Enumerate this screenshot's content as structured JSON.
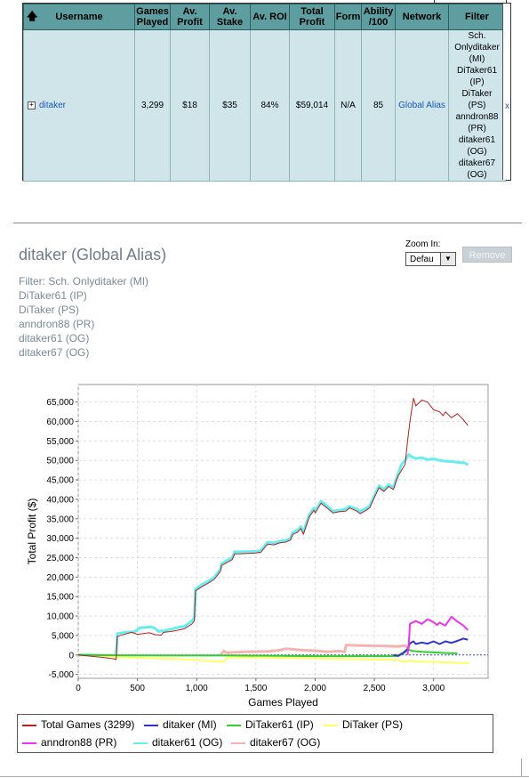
{
  "table": {
    "headers": [
      "Username",
      "Games Played",
      "Av. Profit",
      "Av. Stake",
      "Av. ROI",
      "Total Profit",
      "Form",
      "Ability /100",
      "Network",
      "Filter"
    ],
    "row": {
      "username": "ditaker",
      "games_played": "3,299",
      "av_profit": "$18",
      "av_stake": "$35",
      "av_roi": "84%",
      "total_profit": "$59,014",
      "form": "N/A",
      "ability": "85",
      "network": "Global Alias",
      "filter_lines": [
        "Sch.",
        "Onlyditaker",
        "(MI)",
        "DiTaker61",
        "(IP)",
        "DiTaker",
        "(PS)",
        "anndron88",
        "(PR)",
        "ditaker61",
        "(OG)",
        "ditaker67",
        "(OG)"
      ],
      "remove_mark": "x"
    },
    "sort_icon": "up-arrow-icon",
    "expand_icon": "plus-box-icon",
    "header_color": "#5f9ea0",
    "row_color": "#cfe5ea"
  },
  "header": {
    "title": "ditaker (Global Alias)",
    "filters": [
      "Filter: Sch. Onlyditaker (MI)",
      "DiTaker61 (IP)",
      "DiTaker (PS)",
      "anndron88 (PR)",
      "ditaker61 (OG)",
      "ditaker67 (OG)"
    ],
    "zoom_label": "Zoom In:",
    "zoom_value": "Defau",
    "remove_label": "Remove"
  },
  "chart_data": {
    "type": "line",
    "xlabel": "Games Played",
    "ylabel": "Total Profit ($)",
    "xlim": [
      0,
      3460
    ],
    "ylim": [
      -6000,
      69500
    ],
    "x_ticks": [
      0,
      500,
      1000,
      1500,
      2000,
      2500,
      3000
    ],
    "x_tick_labels": [
      "0",
      "500",
      "1,000",
      "1,500",
      "2,000",
      "2,500",
      "3,000"
    ],
    "y_ticks": [
      -5000,
      0,
      5000,
      10000,
      15000,
      20000,
      25000,
      30000,
      35000,
      40000,
      45000,
      50000,
      55000,
      60000,
      65000
    ],
    "y_tick_labels": [
      "-5,000",
      "0",
      "5,000",
      "10,000",
      "15,000",
      "20,000",
      "25,000",
      "30,000",
      "35,000",
      "40,000",
      "45,000",
      "50,000",
      "55,000",
      "60,000",
      "65,000"
    ],
    "grid": true,
    "legend_position": "bottom",
    "series": [
      {
        "name": "ditaker61 (OG)",
        "color": "#66eeee",
        "width": 3,
        "x": [
          0,
          100,
          250,
          320,
          330,
          400,
          480,
          520,
          620,
          650,
          680,
          700,
          720,
          740,
          780,
          830,
          900,
          960,
          980,
          990,
          1040,
          1100,
          1150,
          1200,
          1210,
          1300,
          1320,
          1370,
          1500,
          1540,
          1600,
          1650,
          1700,
          1750,
          1790,
          1810,
          1850,
          1880,
          1900,
          1950,
          1990,
          2000,
          2050,
          2100,
          2150,
          2200,
          2260,
          2290,
          2350,
          2380,
          2420,
          2460,
          2500,
          2540,
          2580,
          2620,
          2660,
          2700,
          2730,
          2760,
          2790,
          2810,
          2850,
          2900,
          2950,
          3000,
          3050,
          3100,
          3150,
          3200,
          3260,
          3290
        ],
        "y": [
          0,
          0,
          -200,
          -200,
          5500,
          5800,
          6000,
          7000,
          7200,
          6800,
          6000,
          6200,
          6100,
          6300,
          6600,
          7000,
          7400,
          8800,
          9500,
          17000,
          18000,
          19000,
          20000,
          22000,
          23500,
          25000,
          26500,
          26500,
          26600,
          26800,
          29000,
          28800,
          29200,
          29500,
          29800,
          31500,
          32000,
          33000,
          31500,
          36000,
          37800,
          37000,
          39500,
          38300,
          37000,
          37200,
          37500,
          38200,
          37500,
          36800,
          37500,
          38300,
          41000,
          43500,
          42500,
          43800,
          43000,
          46500,
          49000,
          50000,
          51500,
          51000,
          50500,
          50700,
          50200,
          50400,
          50000,
          49800,
          49700,
          49500,
          49400,
          48900
        ]
      },
      {
        "name": "ditaker67 (OG)",
        "color": "#f4b3b3",
        "width": 3,
        "x": [
          1200,
          1230,
          1250,
          1400,
          1600,
          1700,
          1750,
          1800,
          1900,
          2000,
          2100,
          2200,
          2250,
          2260,
          2400,
          2600,
          2700,
          2760,
          2780,
          2800
        ],
        "y": [
          0,
          1000,
          600,
          800,
          900,
          1200,
          1600,
          1500,
          1200,
          1100,
          800,
          1000,
          800,
          2500,
          2400,
          2300,
          2200,
          2400,
          2000,
          2100
        ]
      },
      {
        "name": "DiTaker (PS)",
        "color": "#ffff66",
        "width": 2,
        "x": [
          0,
          200,
          400,
          600,
          800,
          1000,
          1200,
          1230,
          1260,
          1400,
          1600,
          1800,
          2000,
          2200,
          2400,
          2600,
          2700,
          2750,
          2800,
          2850,
          3000,
          3100,
          3200,
          3300
        ],
        "y": [
          0,
          -300,
          -600,
          -800,
          -1000,
          -1300,
          -1700,
          -1700,
          -700,
          -600,
          -700,
          -800,
          -900,
          -1000,
          -1100,
          -1200,
          -1300,
          -1800,
          -1500,
          -1700,
          -1800,
          -1900,
          -2000,
          -2100
        ]
      },
      {
        "name": "DiTaker61 (IP)",
        "color": "#33cc33",
        "width": 2,
        "x": [
          0,
          400,
          800,
          1200,
          1600,
          2000,
          2400,
          2700,
          2760,
          2790,
          2800,
          2830,
          2900,
          3000,
          3100,
          3200
        ],
        "y": [
          0,
          -100,
          -150,
          -150,
          -200,
          -300,
          -300,
          -300,
          700,
          1500,
          1200,
          1000,
          800,
          700,
          500,
          400
        ]
      },
      {
        "name": "ditaker (MI)",
        "color": "#3333cc",
        "width": 2,
        "x": [
          2660,
          2700,
          2740,
          2780,
          2800,
          2830,
          2850,
          2900,
          2950,
          3000,
          3050,
          3100,
          3150,
          3200,
          3250,
          3290
        ],
        "y": [
          0,
          -200,
          500,
          1500,
          3000,
          3500,
          2800,
          3200,
          2900,
          3500,
          2800,
          3500,
          3100,
          3600,
          4200,
          3900
        ]
      },
      {
        "name": "anndron88 (PR)",
        "color": "#ee33ee",
        "width": 2,
        "x": [
          2780,
          2790,
          2800,
          2850,
          2900,
          2950,
          3000,
          3030,
          3050,
          3100,
          3150,
          3200,
          3250,
          3290
        ],
        "y": [
          0,
          2500,
          8000,
          8700,
          8000,
          9200,
          8400,
          7700,
          8300,
          7600,
          9800,
          8600,
          7600,
          6400
        ]
      },
      {
        "name": "Total Games (3299)",
        "color": "#b22222",
        "width": 1,
        "x": [
          0,
          100,
          200,
          250,
          300,
          320,
          330,
          400,
          450,
          500,
          600,
          650,
          700,
          720,
          780,
          830,
          900,
          960,
          980,
          990,
          1040,
          1100,
          1150,
          1200,
          1210,
          1300,
          1320,
          1370,
          1500,
          1540,
          1600,
          1650,
          1700,
          1750,
          1790,
          1810,
          1850,
          1880,
          1900,
          1950,
          1990,
          2000,
          2050,
          2100,
          2150,
          2200,
          2260,
          2290,
          2350,
          2380,
          2420,
          2460,
          2500,
          2540,
          2580,
          2620,
          2660,
          2700,
          2730,
          2760,
          2780,
          2800,
          2830,
          2850,
          2900,
          2950,
          3000,
          3050,
          3080,
          3100,
          3150,
          3200,
          3250,
          3290
        ],
        "y": [
          0,
          -300,
          -600,
          -800,
          -1000,
          -1200,
          4800,
          5400,
          5800,
          5300,
          5700,
          5200,
          5100,
          5800,
          6000,
          6300,
          6800,
          8000,
          8800,
          16500,
          17500,
          18500,
          19500,
          21500,
          23000,
          24500,
          26000,
          26000,
          26200,
          26400,
          28500,
          28300,
          28800,
          29000,
          29500,
          31000,
          31500,
          32500,
          31000,
          35500,
          37200,
          36500,
          39000,
          37800,
          36500,
          36800,
          37000,
          37800,
          37000,
          36300,
          37000,
          37800,
          40500,
          43000,
          42000,
          43300,
          42500,
          46000,
          47500,
          49000,
          55000,
          60000,
          66000,
          64000,
          65500,
          65000,
          63000,
          62500,
          61500,
          62500,
          61000,
          62000,
          60500,
          59000
        ]
      }
    ]
  },
  "legend": {
    "items": [
      {
        "label": "Total Games (3299)",
        "color": "#b22222"
      },
      {
        "label": "ditaker (MI)",
        "color": "#3333cc"
      },
      {
        "label": "DiTaker61 (IP)",
        "color": "#33cc33"
      },
      {
        "label": "DiTaker (PS)",
        "color": "#ffff66"
      },
      {
        "label": "anndron88 (PR)",
        "color": "#ee33ee"
      },
      {
        "label": "ditaker61 (OG)",
        "color": "#66eeee"
      },
      {
        "label": "ditaker67 (OG)",
        "color": "#f4b3b3"
      }
    ]
  }
}
